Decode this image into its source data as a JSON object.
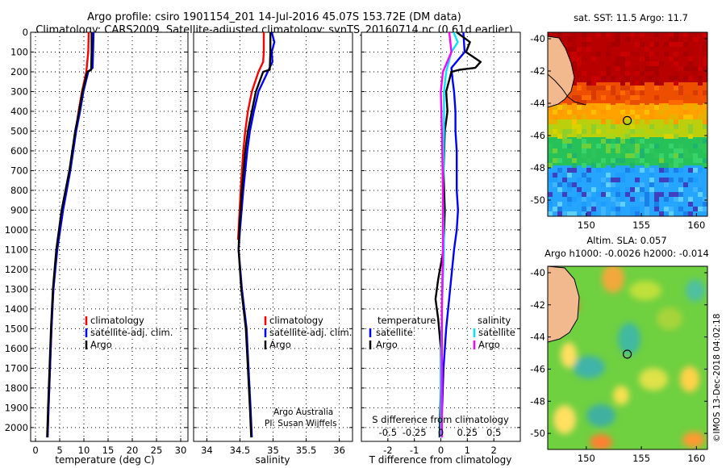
{
  "title_line1": "Argo profile: csiro 1901154_201 14-Jul-2016 45.07S 153.72E (DM data)",
  "title_line2": "Climatology: CARS2009. Satellite-adjusted climatology: synTS_20160714.nc (0.61d earlier)",
  "watermark": "©IMOS 13-Dec-2018 04:02:18",
  "colors": {
    "climatology": "#ff0000",
    "satellite": "#0000ff",
    "argo": "#000000",
    "cyan": "#00e5ff",
    "magenta": "#ff00ff"
  },
  "chart_data": [
    {
      "type": "line",
      "id": "temperature",
      "title": "",
      "xlabel": "temperature (deg C)",
      "ylabel": "",
      "xlim": [
        -1,
        31.5
      ],
      "ylim": [
        2070,
        0
      ],
      "xticks": [
        0,
        5,
        10,
        15,
        20,
        25,
        30
      ],
      "xtick_labels": [
        "0",
        "5",
        "10",
        "15",
        "20",
        "25",
        "30"
      ],
      "yticks": [
        0,
        100,
        200,
        300,
        400,
        500,
        600,
        700,
        800,
        900,
        1000,
        1100,
        1200,
        1300,
        1400,
        1500,
        1600,
        1700,
        1800,
        1900,
        2000
      ],
      "legend": [
        "climatology",
        "satellite-adj. clim.",
        "Argo"
      ],
      "series": [
        {
          "name": "climatology",
          "color": "#ff0000",
          "depth": [
            0,
            100,
            200,
            300,
            400,
            500,
            700,
            900,
            1100,
            1300,
            1500,
            1700,
            1900,
            2050
          ],
          "values": [
            11.0,
            10.9,
            10.5,
            9.6,
            8.9,
            8.3,
            7.1,
            5.6,
            4.4,
            3.7,
            3.3,
            3.0,
            2.7,
            2.5
          ]
        },
        {
          "name": "satellite-adj. clim.",
          "color": "#0000ff",
          "depth": [
            0,
            100,
            180,
            200,
            300,
            400,
            500,
            700,
            900,
            1100,
            1300,
            1500,
            1700,
            1900,
            2050
          ],
          "values": [
            12.0,
            11.9,
            11.8,
            10.9,
            9.9,
            9.2,
            8.4,
            7.2,
            5.7,
            4.5,
            3.7,
            3.3,
            3.0,
            2.7,
            2.5
          ]
        },
        {
          "name": "Argo",
          "color": "#000000",
          "depth": [
            0,
            100,
            190,
            200,
            300,
            400,
            500,
            700,
            900,
            1100,
            1300,
            1500,
            1700,
            1900,
            2050
          ],
          "values": [
            11.6,
            11.6,
            11.5,
            10.7,
            9.7,
            9.0,
            8.2,
            7.0,
            5.4,
            4.3,
            3.6,
            3.2,
            2.9,
            2.6,
            2.4
          ]
        }
      ]
    },
    {
      "type": "line",
      "id": "salinity",
      "title": "",
      "xlabel": "salinity",
      "ylabel": "",
      "xlim": [
        33.8,
        36.2
      ],
      "ylim": [
        2070,
        0
      ],
      "xticks": [
        34,
        34.5,
        35,
        35.5,
        36
      ],
      "xtick_labels": [
        "34",
        "34.5",
        "35",
        "35.5",
        "36"
      ],
      "legend": [
        "climatology",
        "satellite-adj. clim.",
        "Argo"
      ],
      "annotations": [
        "Argo Australia",
        "PI: Susan Wijffels"
      ],
      "series": [
        {
          "name": "climatology",
          "color": "#ff0000",
          "depth": [
            0,
            100,
            150,
            200,
            300,
            400,
            500,
            600,
            800,
            1000,
            1050
          ],
          "values": [
            34.86,
            34.86,
            34.85,
            34.78,
            34.68,
            34.62,
            34.58,
            34.55,
            34.51,
            34.48,
            34.47
          ]
        },
        {
          "name": "satellite-adj. clim.",
          "color": "#0000ff",
          "depth": [
            0,
            50,
            100,
            150,
            200,
            300,
            400,
            500,
            600,
            800,
            1000,
            1100,
            1300,
            1500,
            1700,
            1900,
            2050
          ],
          "values": [
            34.98,
            35.02,
            34.98,
            34.99,
            34.92,
            34.78,
            34.71,
            34.65,
            34.61,
            34.55,
            34.5,
            34.48,
            34.53,
            34.6,
            34.63,
            34.66,
            34.68
          ]
        },
        {
          "name": "Argo",
          "color": "#000000",
          "depth": [
            0,
            100,
            190,
            200,
            300,
            400,
            500,
            600,
            800,
            1000,
            1100,
            1300,
            1500,
            1700,
            1900,
            2050
          ],
          "values": [
            34.96,
            34.96,
            34.95,
            34.85,
            34.74,
            34.68,
            34.62,
            34.58,
            34.53,
            34.49,
            34.48,
            34.52,
            34.59,
            34.62,
            34.65,
            34.67
          ]
        }
      ]
    },
    {
      "type": "line",
      "id": "differences",
      "title": "",
      "xlabel": "T difference from climatology",
      "xlabel_secondary": "S difference from climatology",
      "xlim": [
        -3,
        3
      ],
      "ylim": [
        2070,
        0
      ],
      "xticks": [
        -2,
        -1,
        0,
        1,
        2
      ],
      "xtick_labels": [
        "-2",
        "-1",
        "0",
        "1",
        "2"
      ],
      "secondary_ticks": [
        -0.5,
        -0.25,
        0,
        0.25,
        0.5
      ],
      "secondary_tick_labels": [
        "-0.5",
        "-0.25",
        "0",
        "0.25",
        "0.5"
      ],
      "legend_headers": [
        "temperature",
        "salinity"
      ],
      "legend_temperature": [
        "satellite",
        "Argo"
      ],
      "legend_salinity": [
        "satellite",
        "Argo"
      ],
      "series": [
        {
          "name": "T satellite",
          "color": "#0000ff",
          "depth": [
            0,
            100,
            180,
            250,
            300,
            400,
            500,
            600,
            800,
            900,
            1000,
            1100,
            1300,
            1500,
            1700,
            1900,
            2050
          ],
          "values": [
            0.85,
            0.9,
            0.4,
            0.45,
            0.5,
            0.55,
            0.55,
            0.6,
            0.6,
            0.65,
            0.6,
            0.5,
            0.35,
            0.2,
            0.1,
            0.05,
            0.02
          ]
        },
        {
          "name": "T Argo",
          "color": "#000000",
          "depth": [
            0,
            50,
            100,
            150,
            180,
            190,
            200,
            250,
            300,
            400,
            500,
            700,
            900,
            1100,
            1250,
            1350,
            1450,
            1600,
            1800,
            2050
          ],
          "values": [
            0.6,
            1.1,
            0.95,
            1.5,
            1.3,
            0.7,
            0.4,
            0.3,
            0.2,
            0.25,
            0.15,
            0.1,
            0.15,
            0.1,
            -0.1,
            -0.2,
            -0.1,
            0.0,
            0.0,
            -0.05
          ]
        },
        {
          "name": "S satellite",
          "color": "#00e5ff",
          "depth": [
            0,
            50,
            100,
            200,
            300,
            500,
            800,
            1100,
            1400,
            1700,
            2050
          ],
          "values": [
            0.12,
            0.16,
            0.1,
            0.05,
            0.03,
            0.03,
            0.02,
            0.03,
            0.01,
            0.0,
            0.0
          ]
        },
        {
          "name": "S Argo",
          "color": "#ff00ff",
          "depth": [
            0,
            50,
            100,
            200,
            300,
            500,
            800,
            1100,
            1400,
            1700,
            2050
          ],
          "values": [
            0.08,
            0.09,
            0.1,
            0.02,
            0.0,
            0.01,
            0.02,
            0.02,
            0.01,
            0.01,
            0.01
          ]
        }
      ]
    },
    {
      "type": "heatmap",
      "id": "sst-map",
      "title": "sat. SST: 11.5 Argo: 11.7",
      "xlim": [
        146.5,
        161
      ],
      "ylim": [
        -51,
        -39.6
      ],
      "xticks": [
        150,
        155,
        160
      ],
      "xtick_labels": [
        "150",
        "155",
        "160"
      ],
      "yticks": [
        -40,
        -42,
        -44,
        -46,
        -48,
        -50
      ],
      "ytick_labels": [
        "-40",
        "-42",
        "-44",
        "-46",
        "-48",
        "-50"
      ],
      "marker": {
        "lon": 153.72,
        "lat": -45.07
      }
    },
    {
      "type": "heatmap",
      "id": "sla-map",
      "title": "Altim. SLA: 0.057",
      "subtitle": "Argo h1000: -0.0026 h2000: -0.014",
      "xlim": [
        146.5,
        161
      ],
      "ylim": [
        -51,
        -39.6
      ],
      "xticks": [
        150,
        155,
        160
      ],
      "xtick_labels": [
        "150",
        "155",
        "160"
      ],
      "yticks": [
        -40,
        -42,
        -44,
        -46,
        -48,
        -50
      ],
      "ytick_labels": [
        "-40",
        "-42",
        "-44",
        "-46",
        "-48",
        "-50"
      ],
      "marker": {
        "lon": 153.72,
        "lat": -45.07
      }
    }
  ]
}
